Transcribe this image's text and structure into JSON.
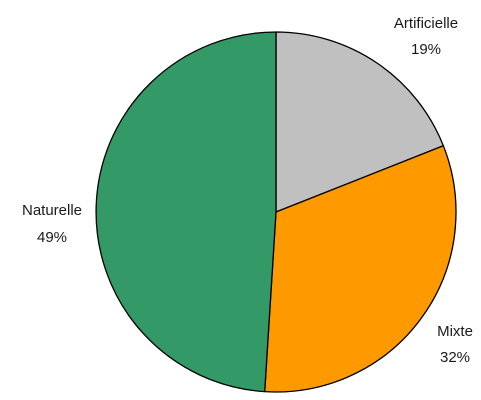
{
  "chart_data": {
    "type": "pie",
    "slices": [
      {
        "label": "Artificielle",
        "value": 19,
        "value_text": "19%",
        "color": "#c0c0c0"
      },
      {
        "label": "Mixte",
        "value": 32,
        "value_text": "32%",
        "color": "#ff9900"
      },
      {
        "label": "Naturelle",
        "value": 49,
        "value_text": "49%",
        "color": "#339966"
      }
    ],
    "start_angle": "12 o'clock",
    "direction": "clockwise",
    "stroke_color": "#000000"
  }
}
